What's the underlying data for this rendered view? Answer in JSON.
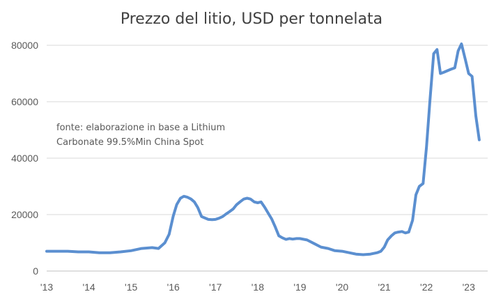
{
  "chart_data": {
    "type": "line",
    "title": "Prezzo del litio, USD per tonnelata",
    "xlabel": "",
    "ylabel": "",
    "ylim": [
      0,
      80000
    ],
    "xlim": [
      2013.0,
      2023.45
    ],
    "yticks": [
      0,
      20000,
      40000,
      60000,
      80000
    ],
    "xticks": [
      {
        "value": 2013,
        "label": "'13"
      },
      {
        "value": 2014,
        "label": "'14"
      },
      {
        "value": 2015,
        "label": "'15"
      },
      {
        "value": 2016,
        "label": "'16"
      },
      {
        "value": 2017,
        "label": "'17"
      },
      {
        "value": 2018,
        "label": "'18"
      },
      {
        "value": 2019,
        "label": "'19"
      },
      {
        "value": 2020,
        "label": "'20"
      },
      {
        "value": 2021,
        "label": "'21"
      },
      {
        "value": 2022,
        "label": "'22"
      },
      {
        "value": 2023,
        "label": "'23"
      }
    ],
    "grid": true,
    "legend": "none",
    "annotation": "fonte: elaborazione in base a Lithium Carbonate 99.5%Min China Spot",
    "color": "#5b8fd0",
    "series": [
      {
        "x": [
          2013.0,
          2013.25,
          2013.5,
          2013.75,
          2014.0,
          2014.25,
          2014.5,
          2014.75,
          2015.0,
          2015.25,
          2015.5,
          2015.65,
          2015.8,
          2015.9,
          2016.0,
          2016.08,
          2016.17,
          2016.25,
          2016.33,
          2016.42,
          2016.5,
          2016.58,
          2016.67,
          2016.75,
          2016.83,
          2016.92,
          2017.0,
          2017.08,
          2017.17,
          2017.25,
          2017.33,
          2017.42,
          2017.5,
          2017.58,
          2017.67,
          2017.75,
          2017.83,
          2017.92,
          2018.0,
          2018.08,
          2018.17,
          2018.25,
          2018.33,
          2018.42,
          2018.5,
          2018.58,
          2018.67,
          2018.75,
          2018.83,
          2018.92,
          2019.0,
          2019.17,
          2019.33,
          2019.5,
          2019.67,
          2019.83,
          2020.0,
          2020.17,
          2020.33,
          2020.5,
          2020.67,
          2020.83,
          2020.92,
          2021.0,
          2021.08,
          2021.17,
          2021.25,
          2021.33,
          2021.42,
          2021.5,
          2021.58,
          2021.67,
          2021.75,
          2021.83,
          2021.92,
          2022.0,
          2022.08,
          2022.17,
          2022.25,
          2022.33,
          2022.42,
          2022.5,
          2022.58,
          2022.67,
          2022.75,
          2022.83,
          2022.92,
          2023.0,
          2023.08,
          2023.17,
          2023.25
        ],
        "values": [
          7000,
          7000,
          7000,
          6800,
          6800,
          6500,
          6500,
          6800,
          7200,
          8000,
          8300,
          8000,
          10000,
          13000,
          19500,
          23500,
          25800,
          26500,
          26200,
          25500,
          24500,
          22500,
          19300,
          18800,
          18300,
          18200,
          18300,
          18700,
          19300,
          20200,
          21000,
          22000,
          23500,
          24500,
          25500,
          25800,
          25500,
          24500,
          24200,
          24500,
          22500,
          20500,
          18500,
          15500,
          12500,
          11800,
          11200,
          11500,
          11300,
          11500,
          11500,
          11000,
          9800,
          8500,
          8000,
          7200,
          7000,
          6500,
          6000,
          5800,
          6000,
          6500,
          7000,
          8500,
          11000,
          12500,
          13500,
          13800,
          14000,
          13500,
          13800,
          18000,
          27000,
          30000,
          31000,
          44000,
          60000,
          77000,
          78500,
          70000,
          70500,
          71000,
          71500,
          72000,
          78000,
          80500,
          75000,
          70000,
          69000,
          55000,
          46500
        ]
      }
    ]
  }
}
